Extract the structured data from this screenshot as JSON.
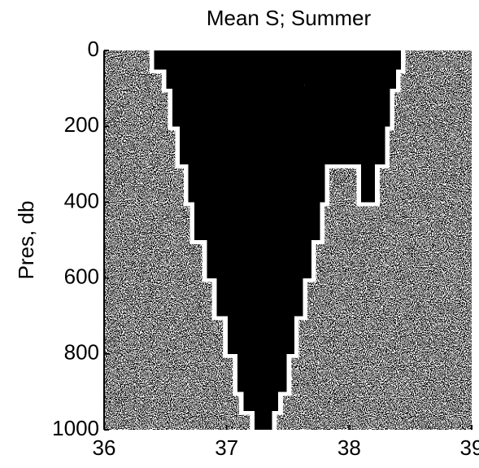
{
  "chart_data": {
    "type": "profile",
    "title": "Mean S;  Summer",
    "ylabel": "Pres, db",
    "xlim": [
      36,
      39
    ],
    "xticks": [
      36,
      37,
      38,
      39
    ],
    "ylim": [
      1000,
      0
    ],
    "yticks": [
      0,
      200,
      400,
      600,
      800,
      1000
    ],
    "color": "#000000",
    "bands": [
      {
        "bins": [
          0,
          50,
          100,
          200,
          300,
          400,
          500,
          600,
          700,
          800,
          900,
          950,
          1000
        ],
        "left": [
          36.41,
          36.51,
          36.56,
          36.62,
          36.69,
          36.74,
          36.84,
          36.92,
          37.01,
          37.09,
          37.14,
          37.23
        ],
        "right": [
          38.42,
          38.38,
          38.33,
          38.29,
          37.8,
          37.76,
          37.69,
          37.62,
          37.55,
          37.49,
          37.42,
          37.37
        ]
      },
      {
        "bins": [
          300,
          400
        ],
        "left": [
          38.1
        ],
        "right": [
          38.21
        ]
      }
    ]
  }
}
